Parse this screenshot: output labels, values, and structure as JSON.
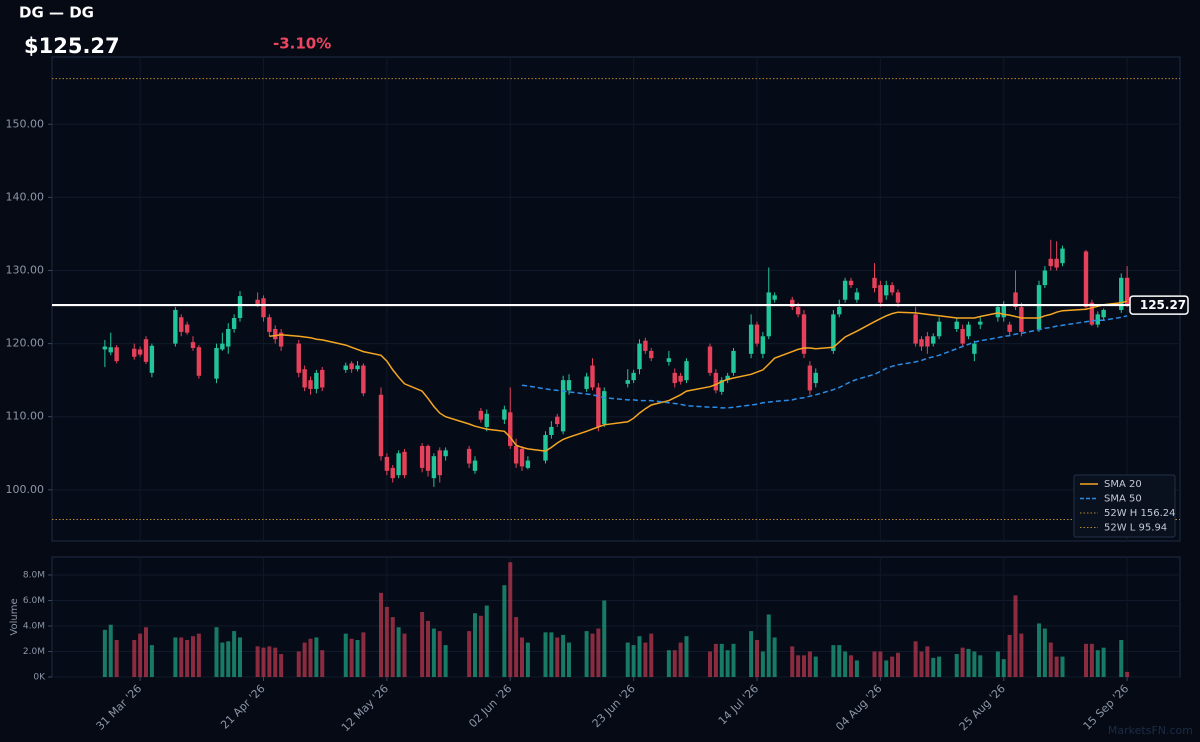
{
  "chart_data": {
    "type": "candlestick",
    "title": "DG — DG",
    "price": "$125.27",
    "change": "-3.10%",
    "up_color": "#22c59a",
    "down_color": "#e5415b",
    "volume_opacity": 0.6,
    "grid": true,
    "legend": "lower right",
    "watermark": "MarketsFN.com",
    "xlim": [
      "2026-03-16",
      "2026-09-24"
    ],
    "xticks": [
      {
        "value": "2026-03-31",
        "label": "31 Mar '26"
      },
      {
        "value": "2026-04-21",
        "label": "21 Apr '26"
      },
      {
        "value": "2026-05-12",
        "label": "12 May '26"
      },
      {
        "value": "2026-06-02",
        "label": "02 Jun '26"
      },
      {
        "value": "2026-06-23",
        "label": "23 Jun '26"
      },
      {
        "value": "2026-07-14",
        "label": "14 Jul '26"
      },
      {
        "value": "2026-08-04",
        "label": "04 Aug '26"
      },
      {
        "value": "2026-08-25",
        "label": "25 Aug '26"
      },
      {
        "value": "2026-09-15",
        "label": "15 Sep '26"
      }
    ],
    "ylim": [
      93,
      159.2
    ],
    "yticks": [
      {
        "value": 100,
        "label": "100.00"
      },
      {
        "value": 110,
        "label": "110.00"
      },
      {
        "value": 120,
        "label": "120.00"
      },
      {
        "value": 130,
        "label": "130.00"
      },
      {
        "value": 140,
        "label": "140.00"
      },
      {
        "value": 150,
        "label": "150.00"
      }
    ],
    "volume_label": "Volume",
    "volume_ylim": [
      0,
      9410000
    ],
    "volume_yticks": [
      {
        "value": 0,
        "label": "0K"
      },
      {
        "value": 2000000,
        "label": "2.0M"
      },
      {
        "value": 4000000,
        "label": "4.0M"
      },
      {
        "value": 6000000,
        "label": "6.0M"
      },
      {
        "value": 8000000,
        "label": "8.0M"
      }
    ],
    "x": [
      "2026-03-25",
      "2026-03-26",
      "2026-03-27",
      "2026-03-30",
      "2026-03-31",
      "2026-04-01",
      "2026-04-02",
      "2026-04-06",
      "2026-04-07",
      "2026-04-08",
      "2026-04-09",
      "2026-04-10",
      "2026-04-13",
      "2026-04-14",
      "2026-04-15",
      "2026-04-16",
      "2026-04-17",
      "2026-04-20",
      "2026-04-21",
      "2026-04-22",
      "2026-04-23",
      "2026-04-24",
      "2026-04-27",
      "2026-04-28",
      "2026-04-29",
      "2026-04-30",
      "2026-05-01",
      "2026-05-05",
      "2026-05-06",
      "2026-05-07",
      "2026-05-08",
      "2026-05-11",
      "2026-05-12",
      "2026-05-13",
      "2026-05-14",
      "2026-05-15",
      "2026-05-18",
      "2026-05-19",
      "2026-05-20",
      "2026-05-21",
      "2026-05-22",
      "2026-05-26",
      "2026-05-27",
      "2026-05-28",
      "2026-05-29",
      "2026-06-01",
      "2026-06-02",
      "2026-06-03",
      "2026-06-04",
      "2026-06-05",
      "2026-06-08",
      "2026-06-09",
      "2026-06-10",
      "2026-06-11",
      "2026-06-12",
      "2026-06-15",
      "2026-06-16",
      "2026-06-17",
      "2026-06-18",
      "2026-06-22",
      "2026-06-23",
      "2026-06-24",
      "2026-06-25",
      "2026-06-26",
      "2026-06-29",
      "2026-06-30",
      "2026-07-01",
      "2026-07-02",
      "2026-07-06",
      "2026-07-07",
      "2026-07-08",
      "2026-07-09",
      "2026-07-10",
      "2026-07-13",
      "2026-07-14",
      "2026-07-15",
      "2026-07-16",
      "2026-07-17",
      "2026-07-20",
      "2026-07-21",
      "2026-07-22",
      "2026-07-23",
      "2026-07-24",
      "2026-07-27",
      "2026-07-28",
      "2026-07-29",
      "2026-07-30",
      "2026-07-31",
      "2026-08-03",
      "2026-08-04",
      "2026-08-05",
      "2026-08-06",
      "2026-08-07",
      "2026-08-10",
      "2026-08-11",
      "2026-08-12",
      "2026-08-13",
      "2026-08-14",
      "2026-08-17",
      "2026-08-18",
      "2026-08-19",
      "2026-08-20",
      "2026-08-21",
      "2026-08-24",
      "2026-08-25",
      "2026-08-26",
      "2026-08-27",
      "2026-08-28",
      "2026-08-31",
      "2026-09-01",
      "2026-09-02",
      "2026-09-03",
      "2026-09-04",
      "2026-09-08",
      "2026-09-09",
      "2026-09-10",
      "2026-09-11",
      "2026-09-14",
      "2026-09-15"
    ],
    "open": [
      119.2,
      118.8,
      119.5,
      119.3,
      119.2,
      120.6,
      116.0,
      120.0,
      123.6,
      122.6,
      120.2,
      119.5,
      115.2,
      119.2,
      119.6,
      122.0,
      123.5,
      126.0,
      126.2,
      123.6,
      122.0,
      121.5,
      120.0,
      116.5,
      115.0,
      113.8,
      116.4,
      116.4,
      117.3,
      116.5,
      117.0,
      113.0,
      104.5,
      103.0,
      102.0,
      105.2,
      106.0,
      106.0,
      101.6,
      105.4,
      104.6,
      105.6,
      102.6,
      110.8,
      108.6,
      109.6,
      110.6,
      106.0,
      105.6,
      103.0,
      104.0,
      107.5,
      110.0,
      108.0,
      113.6,
      113.8,
      117.0,
      114.0,
      109.0,
      114.5,
      115.0,
      116.5,
      120.4,
      119.0,
      117.5,
      116.0,
      115.6,
      115.0,
      119.6,
      116.0,
      113.4,
      115.0,
      116.0,
      118.6,
      122.6,
      118.6,
      121.0,
      126.0,
      126.0,
      125.0,
      124.0,
      117.0,
      114.6,
      119.0,
      124.0,
      126.0,
      128.6,
      126.0,
      129.0,
      128.0,
      126.6,
      128.0,
      127.0,
      124.0,
      120.6,
      121.0,
      120.0,
      121.0,
      122.0,
      122.0,
      121.0,
      118.6,
      122.6,
      123.6,
      123.6,
      122.6,
      127.0,
      125.0,
      122.0,
      128.0,
      131.6,
      131.6,
      131.0,
      132.6,
      125.6,
      122.6,
      123.6,
      124.6,
      129.0
    ],
    "high": [
      120.5,
      121.5,
      119.8,
      120.0,
      119.6,
      121.0,
      120.0,
      125.0,
      124.0,
      123.0,
      121.0,
      119.8,
      120.0,
      121.5,
      122.8,
      124.0,
      127.2,
      127.0,
      126.6,
      124.0,
      122.5,
      122.0,
      120.5,
      117.0,
      115.5,
      116.4,
      116.8,
      117.4,
      117.6,
      117.6,
      117.3,
      114.0,
      105.0,
      103.4,
      105.4,
      105.6,
      106.4,
      106.2,
      105.0,
      105.8,
      105.8,
      106.0,
      104.6,
      111.2,
      111.0,
      111.5,
      114.0,
      107.0,
      106.0,
      104.6,
      108.0,
      109.4,
      110.4,
      115.6,
      115.8,
      116.0,
      118.0,
      114.6,
      114.0,
      116.5,
      116.4,
      120.6,
      120.8,
      119.4,
      119.0,
      116.6,
      116.0,
      118.0,
      120.0,
      116.5,
      115.4,
      116.0,
      119.4,
      124.0,
      123.0,
      121.6,
      130.4,
      127.0,
      126.4,
      125.6,
      124.6,
      117.6,
      116.6,
      124.6,
      126.0,
      129.0,
      129.0,
      127.6,
      131.0,
      128.6,
      128.6,
      128.4,
      127.4,
      125.0,
      121.0,
      121.6,
      121.4,
      123.6,
      123.6,
      122.6,
      123.0,
      120.4,
      123.6,
      125.4,
      125.8,
      123.0,
      130.0,
      125.6,
      128.6,
      130.6,
      134.2,
      134.0,
      133.4,
      132.8,
      126.0,
      124.4,
      124.8,
      129.6,
      130.6
    ],
    "low": [
      116.8,
      118.4,
      117.3,
      117.8,
      118.2,
      117.2,
      115.4,
      119.6,
      121.0,
      121.2,
      119.0,
      115.2,
      114.6,
      119.0,
      118.6,
      121.5,
      123.0,
      125.0,
      123.0,
      121.0,
      120.0,
      119.0,
      115.4,
      113.5,
      113.0,
      113.2,
      113.5,
      116.0,
      116.0,
      116.2,
      112.8,
      104.0,
      102.0,
      101.0,
      101.6,
      101.6,
      102.4,
      101.8,
      100.4,
      101.0,
      104.0,
      103.0,
      102.2,
      109.2,
      108.0,
      109.0,
      105.6,
      103.0,
      102.6,
      102.8,
      103.6,
      107.0,
      108.6,
      107.6,
      113.0,
      113.4,
      113.6,
      108.0,
      108.6,
      114.0,
      114.6,
      115.8,
      118.6,
      117.6,
      117.0,
      114.0,
      114.4,
      114.6,
      115.6,
      113.2,
      113.0,
      114.6,
      115.6,
      118.0,
      119.6,
      118.0,
      120.6,
      125.6,
      124.6,
      123.6,
      118.0,
      113.0,
      114.0,
      118.6,
      123.6,
      125.6,
      127.6,
      125.6,
      127.0,
      125.0,
      126.0,
      126.6,
      125.0,
      119.6,
      119.0,
      118.6,
      119.6,
      120.6,
      121.6,
      119.6,
      120.6,
      117.6,
      122.0,
      123.0,
      123.0,
      121.0,
      124.6,
      121.0,
      121.6,
      127.6,
      130.0,
      130.0,
      130.6,
      124.6,
      122.4,
      122.2,
      123.2,
      124.2,
      125.0
    ],
    "close": [
      119.6,
      119.5,
      117.6,
      118.2,
      118.5,
      117.5,
      119.7,
      124.6,
      121.6,
      121.5,
      119.4,
      115.6,
      119.4,
      120.0,
      122.0,
      123.5,
      126.5,
      125.4,
      123.6,
      121.6,
      120.6,
      119.6,
      116.0,
      114.0,
      113.8,
      116.0,
      114.0,
      117.0,
      116.5,
      117.0,
      113.2,
      104.6,
      102.6,
      101.6,
      105.0,
      102.0,
      103.0,
      102.6,
      104.6,
      102.0,
      105.4,
      103.6,
      104.0,
      109.6,
      110.4,
      111.0,
      106.0,
      103.6,
      103.2,
      104.0,
      107.5,
      108.6,
      109.0,
      115.0,
      115.0,
      115.5,
      114.0,
      108.6,
      113.5,
      115.0,
      116.0,
      120.0,
      119.0,
      118.0,
      118.0,
      114.6,
      114.8,
      117.6,
      116.0,
      113.6,
      115.0,
      115.6,
      119.0,
      122.6,
      120.0,
      121.0,
      127.0,
      126.6,
      125.0,
      124.0,
      118.6,
      113.6,
      116.0,
      124.0,
      125.0,
      128.6,
      128.0,
      127.0,
      127.6,
      125.6,
      128.0,
      127.0,
      125.6,
      120.0,
      119.6,
      119.6,
      121.0,
      123.0,
      123.0,
      120.0,
      122.6,
      120.0,
      123.0,
      125.0,
      125.4,
      121.6,
      125.0,
      121.6,
      128.0,
      130.0,
      130.6,
      130.4,
      133.0,
      125.0,
      122.6,
      124.0,
      124.6,
      129.0,
      125.27
    ],
    "volume": [
      3700000,
      4100000,
      2900000,
      2900000,
      3400000,
      3900000,
      2500000,
      3100000,
      3100000,
      2900000,
      3200000,
      3400000,
      3900000,
      2700000,
      2800000,
      3600000,
      3100000,
      2400000,
      2300000,
      2400000,
      2300000,
      1800000,
      2000000,
      2700000,
      3000000,
      3100000,
      2100000,
      3400000,
      3000000,
      2900000,
      3500000,
      6600000,
      5500000,
      4700000,
      3900000,
      3400000,
      5100000,
      4400000,
      3800000,
      3600000,
      2500000,
      3600000,
      5000000,
      4800000,
      5600000,
      7200000,
      9000000,
      4700000,
      3100000,
      2700000,
      3500000,
      3500000,
      3100000,
      3300000,
      2700000,
      3600000,
      3400000,
      3800000,
      6000000,
      2700000,
      2500000,
      3200000,
      2700000,
      3400000,
      2100000,
      2100000,
      2700000,
      3200000,
      2000000,
      2600000,
      2600000,
      2100000,
      2600000,
      3600000,
      2900000,
      2000000,
      4900000,
      3100000,
      2400000,
      1700000,
      1700000,
      2000000,
      1600000,
      2500000,
      2500000,
      2000000,
      1700000,
      1300000,
      2000000,
      2000000,
      1300000,
      1600000,
      1900000,
      2800000,
      2000000,
      2400000,
      1500000,
      1600000,
      1800000,
      2300000,
      2200000,
      2000000,
      1700000,
      2000000,
      1400000,
      3300000,
      6400000,
      3400000,
      4200000,
      3800000,
      2700000,
      1600000,
      1600000,
      2600000,
      2600000,
      2100000,
      2300000,
      2900000,
      400000
    ],
    "series": [
      {
        "name": "SMA 20",
        "color": "#f5a623",
        "style": "solid",
        "values": [
          null,
          null,
          null,
          null,
          null,
          null,
          null,
          null,
          null,
          null,
          null,
          null,
          null,
          null,
          null,
          null,
          null,
          null,
          null,
          121.0,
          121.1,
          121.2,
          121.0,
          120.9,
          120.8,
          120.6,
          120.5,
          119.8,
          119.5,
          119.2,
          118.9,
          118.4,
          117.6,
          116.4,
          115.4,
          114.5,
          113.5,
          112.5,
          111.4,
          110.5,
          110.0,
          109.0,
          108.7,
          108.5,
          108.3,
          108.0,
          107.2,
          106.1,
          105.8,
          105.6,
          105.3,
          105.8,
          106.4,
          106.9,
          107.2,
          108.0,
          108.3,
          108.6,
          108.9,
          109.3,
          109.8,
          110.5,
          111.1,
          111.6,
          112.2,
          112.6,
          113.0,
          113.5,
          114.1,
          114.4,
          114.8,
          115.1,
          115.3,
          115.8,
          116.1,
          116.4,
          117.2,
          118.0,
          118.9,
          119.2,
          119.4,
          119.4,
          119.3,
          119.5,
          120.2,
          120.9,
          121.3,
          121.7,
          123.0,
          123.4,
          123.8,
          124.1,
          124.3,
          124.2,
          124.1,
          124.0,
          123.9,
          123.8,
          123.5,
          123.5,
          123.5,
          123.5,
          123.7,
          124.2,
          124.0,
          123.9,
          123.7,
          123.5,
          123.5,
          123.8,
          124.0,
          124.3,
          124.5,
          124.7,
          124.9,
          125.1,
          125.3,
          125.6,
          125.8
        ]
      },
      {
        "name": "SMA 50",
        "color": "#2b8ce6",
        "style": "dashed",
        "values": [
          null,
          null,
          null,
          null,
          null,
          null,
          null,
          null,
          null,
          null,
          null,
          null,
          null,
          null,
          null,
          null,
          null,
          null,
          null,
          null,
          null,
          null,
          null,
          null,
          null,
          null,
          null,
          null,
          null,
          null,
          null,
          null,
          null,
          null,
          null,
          null,
          null,
          null,
          null,
          null,
          null,
          null,
          null,
          null,
          null,
          null,
          null,
          null,
          114.3,
          114.2,
          113.8,
          113.7,
          113.6,
          113.5,
          113.4,
          113.1,
          113.0,
          112.8,
          112.6,
          112.3,
          112.3,
          112.2,
          112.2,
          112.2,
          111.9,
          111.8,
          111.7,
          111.5,
          111.3,
          111.3,
          111.2,
          111.2,
          111.3,
          111.6,
          111.7,
          111.9,
          112.0,
          112.1,
          112.3,
          112.5,
          112.6,
          112.8,
          113.0,
          113.7,
          114.0,
          114.4,
          114.8,
          115.1,
          115.8,
          116.2,
          116.6,
          116.9,
          117.1,
          117.5,
          117.7,
          118.0,
          118.2,
          118.4,
          119.3,
          119.6,
          119.9,
          120.2,
          120.4,
          120.8,
          121.0,
          121.1,
          121.3,
          121.4,
          121.9,
          122.1,
          122.2,
          122.4,
          122.5,
          123.0,
          123.1,
          123.2,
          123.2,
          123.6,
          123.8
        ]
      }
    ],
    "reference_lines": [
      {
        "name": "52W H 156.24",
        "value": 156.24,
        "color": "#b7862d"
      },
      {
        "name": "52W L 95.94",
        "value": 95.94,
        "color": "#b7862d"
      }
    ],
    "last_price_line": {
      "value": 125.27,
      "color": "#ffffff"
    }
  }
}
